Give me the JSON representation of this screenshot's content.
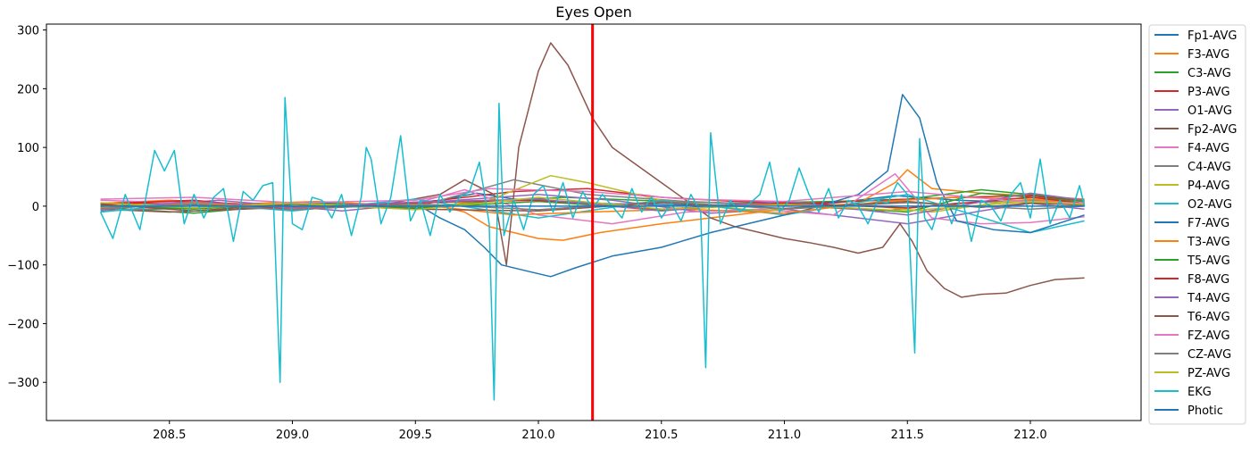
{
  "chart_data": {
    "type": "line",
    "title": "Eyes Open",
    "xlabel": "",
    "ylabel": "",
    "xlim": [
      208.0,
      212.45
    ],
    "ylim": [
      -365,
      310
    ],
    "x_ticks": [
      208.5,
      209.0,
      209.5,
      210.0,
      210.5,
      211.0,
      211.5,
      212.0
    ],
    "x_tick_labels": [
      "208.5",
      "209.0",
      "209.5",
      "210.0",
      "210.5",
      "211.0",
      "211.5",
      "212.0"
    ],
    "y_ticks": [
      300,
      200,
      100,
      0,
      -100,
      -200,
      -300
    ],
    "y_tick_labels": [
      "300",
      "200",
      "100",
      "0",
      "−100",
      "−200",
      "−300"
    ],
    "grid": false,
    "legend_position": "outside-right",
    "marker": {
      "x": 210.22,
      "color": "#ff0000"
    },
    "series": [
      {
        "name": "Fp1-AVG",
        "color": "#1f77b4",
        "x": [
          208.22,
          208.5,
          208.8,
          209.1,
          209.4,
          209.6,
          209.75,
          209.9,
          210.1,
          210.3,
          210.6,
          210.9,
          211.2,
          211.45,
          211.7,
          212.0,
          212.22
        ],
        "y": [
          0,
          4,
          -3,
          6,
          2,
          10,
          22,
          12,
          8,
          4,
          2,
          3,
          5,
          18,
          10,
          6,
          2
        ]
      },
      {
        "name": "F3-AVG",
        "color": "#ff7f0e",
        "x": [
          208.22,
          208.5,
          208.8,
          209.1,
          209.4,
          209.6,
          209.7,
          209.8,
          210.0,
          210.1,
          210.25,
          210.5,
          210.8,
          211.0,
          211.3,
          211.45,
          211.5,
          211.6,
          211.8,
          212.0,
          212.22
        ],
        "y": [
          5,
          10,
          4,
          8,
          2,
          0,
          -10,
          -35,
          -55,
          -58,
          -45,
          -30,
          -15,
          -5,
          5,
          40,
          62,
          30,
          22,
          18,
          12
        ]
      },
      {
        "name": "C3-AVG",
        "color": "#2ca02c",
        "x": [
          208.22,
          208.6,
          209.0,
          209.5,
          209.8,
          210.1,
          210.4,
          210.8,
          211.2,
          211.5,
          211.8,
          212.0,
          212.22
        ],
        "y": [
          -2,
          -12,
          3,
          -5,
          8,
          15,
          10,
          5,
          8,
          12,
          28,
          20,
          10
        ]
      },
      {
        "name": "P3-AVG",
        "color": "#d62728",
        "x": [
          208.22,
          208.6,
          209.0,
          209.5,
          209.9,
          210.2,
          210.5,
          210.8,
          211.1,
          211.4,
          211.7,
          212.0,
          212.22
        ],
        "y": [
          3,
          8,
          -2,
          5,
          25,
          30,
          15,
          8,
          5,
          10,
          15,
          18,
          8
        ]
      },
      {
        "name": "O1-AVG",
        "color": "#9467bd",
        "x": [
          208.22,
          208.7,
          209.2,
          209.6,
          210.0,
          210.3,
          210.7,
          211.0,
          211.3,
          211.5,
          211.8,
          212.0,
          212.22
        ],
        "y": [
          -5,
          10,
          -8,
          8,
          20,
          10,
          -12,
          -5,
          -20,
          -30,
          -8,
          5,
          -5
        ]
      },
      {
        "name": "Fp2-AVG",
        "color": "#8c564b",
        "x": [
          208.22,
          208.5,
          208.8,
          209.1,
          209.4,
          209.6,
          209.7,
          209.82,
          209.87,
          209.92,
          210.0,
          210.05,
          210.12,
          210.22,
          210.3,
          210.4,
          210.5,
          210.6,
          210.7,
          210.8,
          210.9,
          211.0,
          211.1,
          211.2,
          211.3,
          211.4,
          211.47,
          211.52,
          211.58,
          211.65,
          211.72,
          211.8,
          211.9,
          212.0,
          212.1,
          212.22
        ],
        "y": [
          -5,
          -10,
          -5,
          0,
          5,
          20,
          45,
          20,
          -100,
          100,
          230,
          278,
          240,
          150,
          100,
          70,
          40,
          10,
          -20,
          -35,
          -45,
          -55,
          -62,
          -70,
          -80,
          -70,
          -30,
          -60,
          -110,
          -140,
          -155,
          -150,
          -148,
          -135,
          -125,
          -122
        ]
      },
      {
        "name": "F4-AVG",
        "color": "#e377c2",
        "x": [
          208.22,
          208.6,
          209.0,
          209.5,
          209.7,
          210.0,
          210.3,
          210.6,
          210.9,
          211.2,
          211.45,
          211.6,
          211.8,
          212.0,
          212.22
        ],
        "y": [
          10,
          5,
          -5,
          5,
          28,
          -15,
          -30,
          -10,
          -5,
          -15,
          55,
          -20,
          -30,
          -28,
          -18
        ]
      },
      {
        "name": "C4-AVG",
        "color": "#7f7f7f",
        "x": [
          208.22,
          208.6,
          209.0,
          209.5,
          209.9,
          210.2,
          210.6,
          211.0,
          211.4,
          211.7,
          212.0,
          212.22
        ],
        "y": [
          -8,
          -3,
          4,
          -2,
          45,
          20,
          8,
          2,
          -8,
          5,
          10,
          5
        ]
      },
      {
        "name": "P4-AVG",
        "color": "#bcbd22",
        "x": [
          208.22,
          208.6,
          209.0,
          209.5,
          209.8,
          210.05,
          210.2,
          210.5,
          210.9,
          211.3,
          211.6,
          211.9,
          212.22
        ],
        "y": [
          2,
          -4,
          6,
          -3,
          10,
          52,
          40,
          10,
          -8,
          3,
          -10,
          8,
          3
        ]
      },
      {
        "name": "O2-AVG",
        "color": "#17becf",
        "x": [
          208.22,
          208.6,
          209.0,
          209.5,
          210.0,
          210.5,
          211.0,
          211.5,
          212.0,
          212.22
        ],
        "y": [
          -10,
          5,
          -8,
          12,
          -20,
          10,
          -15,
          20,
          -45,
          -25
        ]
      },
      {
        "name": "F7-AVG",
        "color": "#1f77b4",
        "x": [
          208.22,
          208.6,
          209.0,
          209.5,
          209.6,
          209.7,
          209.78,
          209.85,
          209.95,
          210.05,
          210.15,
          210.3,
          210.5,
          210.7,
          210.9,
          211.1,
          211.3,
          211.42,
          211.48,
          211.55,
          211.62,
          211.7,
          211.85,
          212.0,
          212.22
        ],
        "y": [
          -5,
          5,
          -5,
          5,
          -20,
          -40,
          -70,
          -100,
          -110,
          -120,
          -105,
          -85,
          -70,
          -45,
          -25,
          -5,
          20,
          60,
          190,
          150,
          40,
          -25,
          -40,
          -45,
          -15
        ]
      },
      {
        "name": "T3-AVG",
        "color": "#ff7f0e",
        "x": [
          208.22,
          208.6,
          209.0,
          209.5,
          209.9,
          210.2,
          210.6,
          211.0,
          211.4,
          211.7,
          212.0,
          212.22
        ],
        "y": [
          -3,
          6,
          -4,
          3,
          -15,
          -10,
          -5,
          -12,
          8,
          15,
          12,
          5
        ]
      },
      {
        "name": "T5-AVG",
        "color": "#2ca02c",
        "x": [
          208.22,
          208.6,
          209.0,
          209.5,
          210.0,
          210.5,
          211.0,
          211.5,
          211.8,
          212.0,
          212.22
        ],
        "y": [
          2,
          -5,
          5,
          -3,
          8,
          -6,
          4,
          -10,
          22,
          15,
          8
        ]
      },
      {
        "name": "F8-AVG",
        "color": "#d62728",
        "x": [
          208.22,
          208.6,
          209.0,
          209.5,
          210.0,
          210.5,
          211.0,
          211.5,
          212.0,
          212.22
        ],
        "y": [
          4,
          10,
          -6,
          6,
          10,
          -5,
          5,
          -3,
          15,
          5
        ]
      },
      {
        "name": "T4-AVG",
        "color": "#9467bd",
        "x": [
          208.22,
          208.6,
          209.0,
          209.5,
          210.0,
          210.5,
          211.0,
          211.5,
          212.0,
          212.22
        ],
        "y": [
          -6,
          8,
          -3,
          7,
          12,
          -8,
          8,
          -15,
          22,
          10
        ]
      },
      {
        "name": "T6-AVG",
        "color": "#8c564b",
        "x": [
          208.22,
          208.6,
          209.0,
          209.5,
          210.0,
          210.5,
          211.0,
          211.5,
          211.8,
          212.0,
          212.22
        ],
        "y": [
          3,
          -8,
          4,
          -5,
          -8,
          6,
          -4,
          8,
          -2,
          5,
          2
        ]
      },
      {
        "name": "FZ-AVG",
        "color": "#e377c2",
        "x": [
          208.22,
          208.6,
          209.0,
          209.5,
          209.8,
          210.2,
          210.6,
          211.0,
          211.5,
          211.9,
          212.22
        ],
        "y": [
          12,
          15,
          6,
          10,
          30,
          25,
          12,
          8,
          25,
          10,
          5
        ]
      },
      {
        "name": "CZ-AVG",
        "color": "#7f7f7f",
        "x": [
          208.22,
          208.6,
          209.0,
          209.5,
          210.0,
          210.5,
          211.0,
          211.5,
          212.0,
          212.22
        ],
        "y": [
          -4,
          3,
          -6,
          4,
          -6,
          8,
          -5,
          6,
          -5,
          0
        ]
      },
      {
        "name": "PZ-AVG",
        "color": "#bcbd22",
        "x": [
          208.22,
          208.6,
          209.0,
          209.5,
          210.0,
          210.5,
          211.0,
          211.5,
          212.0,
          212.22
        ],
        "y": [
          6,
          -3,
          5,
          -6,
          15,
          -5,
          3,
          -8,
          8,
          3
        ]
      },
      {
        "name": "EKG",
        "color": "#17becf",
        "x": [
          208.22,
          208.27,
          208.32,
          208.38,
          208.44,
          208.48,
          208.52,
          208.56,
          208.6,
          208.64,
          208.68,
          208.72,
          208.76,
          208.8,
          208.84,
          208.88,
          208.92,
          208.95,
          208.97,
          209.0,
          209.04,
          209.08,
          209.12,
          209.16,
          209.2,
          209.24,
          209.28,
          209.3,
          209.32,
          209.36,
          209.4,
          209.44,
          209.48,
          209.52,
          209.56,
          209.6,
          209.64,
          209.68,
          209.72,
          209.76,
          209.8,
          209.82,
          209.84,
          209.86,
          209.9,
          209.94,
          209.98,
          210.02,
          210.06,
          210.1,
          210.14,
          210.18,
          210.22,
          210.26,
          210.3,
          210.34,
          210.38,
          210.42,
          210.46,
          210.5,
          210.54,
          210.58,
          210.62,
          210.66,
          210.68,
          210.7,
          210.74,
          210.78,
          210.82,
          210.86,
          210.9,
          210.94,
          210.98,
          211.02,
          211.06,
          211.1,
          211.14,
          211.18,
          211.22,
          211.26,
          211.3,
          211.34,
          211.38,
          211.42,
          211.46,
          211.5,
          211.53,
          211.55,
          211.57,
          211.6,
          211.64,
          211.68,
          211.72,
          211.76,
          211.8,
          211.84,
          211.88,
          211.92,
          211.96,
          212.0,
          212.04,
          212.08,
          212.12,
          212.16,
          212.2,
          212.22
        ],
        "y": [
          -10,
          -55,
          20,
          -40,
          95,
          60,
          95,
          -30,
          20,
          -20,
          15,
          30,
          -60,
          25,
          10,
          35,
          40,
          -300,
          185,
          -30,
          -40,
          15,
          10,
          -20,
          20,
          -50,
          15,
          100,
          80,
          -30,
          15,
          120,
          -25,
          10,
          -50,
          20,
          -10,
          15,
          25,
          75,
          -30,
          -330,
          175,
          -50,
          10,
          -40,
          20,
          35,
          -10,
          40,
          -20,
          25,
          -5,
          20,
          0,
          -20,
          30,
          -10,
          15,
          -20,
          5,
          -25,
          20,
          -10,
          -275,
          125,
          -30,
          10,
          -10,
          5,
          20,
          75,
          -10,
          10,
          65,
          20,
          -10,
          30,
          -20,
          10,
          0,
          -30,
          10,
          5,
          40,
          20,
          -250,
          115,
          -20,
          -40,
          15,
          -30,
          20,
          -60,
          10,
          0,
          -25,
          20,
          40,
          -20,
          80,
          -30,
          10,
          -20,
          35,
          0
        ]
      },
      {
        "name": "Photic",
        "color": "#1f77b4",
        "x": [
          208.22,
          212.22
        ],
        "y": [
          0,
          0
        ]
      }
    ]
  }
}
